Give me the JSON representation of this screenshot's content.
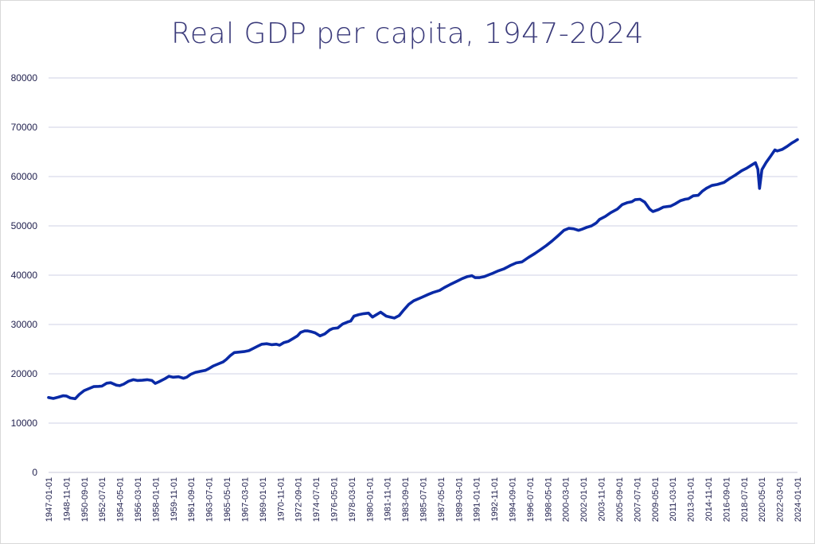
{
  "chart_data": {
    "type": "line",
    "title": "Real GDP per capita, 1947-2024",
    "xlabel": "",
    "ylabel": "",
    "ylim": [
      0,
      80000
    ],
    "yticks": [
      0,
      10000,
      20000,
      30000,
      40000,
      50000,
      60000,
      70000,
      80000
    ],
    "grid": true,
    "legend": "none",
    "colors": {
      "line": "#0a2aa6",
      "grid": "#cfd0e6",
      "text": "#1f1f4d",
      "title": "#3a3a7a"
    },
    "xticks": [
      "1947-01-01",
      "1948-11-01",
      "1950-09-01",
      "1952-07-01",
      "1954-05-01",
      "1956-03-01",
      "1958-01-01",
      "1959-11-01",
      "1961-09-01",
      "1963-07-01",
      "1965-05-01",
      "1967-03-01",
      "1969-01-01",
      "1970-11-01",
      "1972-09-01",
      "1974-07-01",
      "1976-05-01",
      "1978-03-01",
      "1980-01-01",
      "1981-11-01",
      "1983-09-01",
      "1985-07-01",
      "1987-05-01",
      "1989-03-01",
      "1991-01-01",
      "1992-11-01",
      "1994-09-01",
      "1996-07-01",
      "1998-05-01",
      "2000-03-01",
      "2002-01-01",
      "2003-11-01",
      "2005-09-01",
      "2007-07-01",
      "2009-05-01",
      "2011-03-01",
      "2013-01-01",
      "2014-11-01",
      "2016-09-01",
      "2018-07-01",
      "2020-05-01",
      "2022-03-01",
      "2024-01-01"
    ],
    "series": [
      {
        "points": [
          [
            "1947-01-01",
            15200
          ],
          [
            "1947-07-01",
            15000
          ],
          [
            "1948-01-01",
            15250
          ],
          [
            "1948-07-01",
            15550
          ],
          [
            "1948-11-01",
            15500
          ],
          [
            "1949-04-01",
            15100
          ],
          [
            "1949-10-01",
            14950
          ],
          [
            "1950-03-01",
            15800
          ],
          [
            "1950-09-01",
            16600
          ],
          [
            "1951-03-01",
            17000
          ],
          [
            "1951-09-01",
            17400
          ],
          [
            "1952-03-01",
            17450
          ],
          [
            "1952-07-01",
            17500
          ],
          [
            "1953-01-01",
            18100
          ],
          [
            "1953-06-01",
            18200
          ],
          [
            "1954-01-01",
            17700
          ],
          [
            "1954-05-01",
            17600
          ],
          [
            "1954-10-01",
            17900
          ],
          [
            "1955-04-01",
            18500
          ],
          [
            "1955-10-01",
            18800
          ],
          [
            "1956-03-01",
            18650
          ],
          [
            "1956-09-01",
            18700
          ],
          [
            "1957-03-01",
            18800
          ],
          [
            "1957-09-01",
            18650
          ],
          [
            "1958-01-01",
            18050
          ],
          [
            "1958-06-01",
            18400
          ],
          [
            "1959-01-01",
            19000
          ],
          [
            "1959-06-01",
            19500
          ],
          [
            "1959-11-01",
            19300
          ],
          [
            "1960-06-01",
            19400
          ],
          [
            "1960-12-01",
            19100
          ],
          [
            "1961-04-01",
            19300
          ],
          [
            "1961-09-01",
            19900
          ],
          [
            "1962-03-01",
            20300
          ],
          [
            "1962-09-01",
            20500
          ],
          [
            "1963-03-01",
            20700
          ],
          [
            "1963-07-01",
            21000
          ],
          [
            "1964-01-01",
            21600
          ],
          [
            "1964-07-01",
            22000
          ],
          [
            "1965-01-01",
            22400
          ],
          [
            "1965-05-01",
            22900
          ],
          [
            "1965-10-01",
            23700
          ],
          [
            "1966-03-01",
            24300
          ],
          [
            "1966-09-01",
            24400
          ],
          [
            "1967-03-01",
            24500
          ],
          [
            "1967-09-01",
            24700
          ],
          [
            "1968-03-01",
            25200
          ],
          [
            "1968-09-01",
            25700
          ],
          [
            "1969-01-01",
            26000
          ],
          [
            "1969-07-01",
            26100
          ],
          [
            "1970-01-01",
            25900
          ],
          [
            "1970-07-01",
            26000
          ],
          [
            "1970-11-01",
            25800
          ],
          [
            "1971-04-01",
            26300
          ],
          [
            "1971-10-01",
            26600
          ],
          [
            "1972-04-01",
            27200
          ],
          [
            "1972-09-01",
            27700
          ],
          [
            "1973-01-01",
            28400
          ],
          [
            "1973-06-01",
            28700
          ],
          [
            "1973-10-01",
            28700
          ],
          [
            "1974-03-01",
            28500
          ],
          [
            "1974-07-01",
            28300
          ],
          [
            "1975-01-01",
            27700
          ],
          [
            "1975-07-01",
            28100
          ],
          [
            "1976-01-01",
            28900
          ],
          [
            "1976-05-01",
            29200
          ],
          [
            "1976-11-01",
            29300
          ],
          [
            "1977-05-01",
            30100
          ],
          [
            "1977-11-01",
            30500
          ],
          [
            "1978-03-01",
            30700
          ],
          [
            "1978-07-01",
            31700
          ],
          [
            "1979-01-01",
            32000
          ],
          [
            "1979-07-01",
            32200
          ],
          [
            "1980-01-01",
            32300
          ],
          [
            "1980-06-01",
            31500
          ],
          [
            "1980-10-01",
            31900
          ],
          [
            "1981-04-01",
            32500
          ],
          [
            "1981-11-01",
            31700
          ],
          [
            "1982-04-01",
            31500
          ],
          [
            "1982-09-01",
            31300
          ],
          [
            "1983-03-01",
            31800
          ],
          [
            "1983-09-01",
            33000
          ],
          [
            "1984-03-01",
            34100
          ],
          [
            "1984-09-01",
            34800
          ],
          [
            "1985-07-01",
            35500
          ],
          [
            "1986-03-01",
            36100
          ],
          [
            "1986-09-01",
            36500
          ],
          [
            "1987-05-01",
            36900
          ],
          [
            "1987-11-01",
            37500
          ],
          [
            "1988-06-01",
            38100
          ],
          [
            "1989-03-01",
            38800
          ],
          [
            "1989-09-01",
            39300
          ],
          [
            "1990-03-01",
            39700
          ],
          [
            "1990-09-01",
            39900
          ],
          [
            "1991-01-01",
            39500
          ],
          [
            "1991-06-01",
            39500
          ],
          [
            "1991-12-01",
            39700
          ],
          [
            "1992-11-01",
            40400
          ],
          [
            "1993-06-01",
            40900
          ],
          [
            "1994-01-01",
            41300
          ],
          [
            "1994-09-01",
            42000
          ],
          [
            "1995-04-01",
            42500
          ],
          [
            "1995-11-01",
            42700
          ],
          [
            "1996-07-01",
            43600
          ],
          [
            "1997-03-01",
            44400
          ],
          [
            "1997-10-01",
            45200
          ],
          [
            "1998-05-01",
            46000
          ],
          [
            "1998-12-01",
            46900
          ],
          [
            "1999-07-01",
            47900
          ],
          [
            "2000-03-01",
            49100
          ],
          [
            "2000-09-01",
            49500
          ],
          [
            "2001-03-01",
            49400
          ],
          [
            "2001-09-01",
            49100
          ],
          [
            "2002-01-01",
            49300
          ],
          [
            "2002-07-01",
            49700
          ],
          [
            "2003-01-01",
            50000
          ],
          [
            "2003-07-01",
            50600
          ],
          [
            "2003-11-01",
            51300
          ],
          [
            "2004-06-01",
            51900
          ],
          [
            "2005-01-01",
            52700
          ],
          [
            "2005-09-01",
            53400
          ],
          [
            "2006-03-01",
            54300
          ],
          [
            "2006-09-01",
            54700
          ],
          [
            "2007-03-01",
            54900
          ],
          [
            "2007-07-01",
            55300
          ],
          [
            "2008-01-01",
            55400
          ],
          [
            "2008-07-01",
            54800
          ],
          [
            "2009-01-01",
            53400
          ],
          [
            "2009-05-01",
            52900
          ],
          [
            "2009-12-01",
            53300
          ],
          [
            "2010-06-01",
            53800
          ],
          [
            "2011-03-01",
            54000
          ],
          [
            "2011-09-01",
            54500
          ],
          [
            "2012-03-01",
            55100
          ],
          [
            "2012-09-01",
            55400
          ],
          [
            "2013-01-01",
            55500
          ],
          [
            "2013-07-01",
            56100
          ],
          [
            "2014-01-01",
            56200
          ],
          [
            "2014-06-01",
            57000
          ],
          [
            "2014-11-01",
            57600
          ],
          [
            "2015-06-01",
            58200
          ],
          [
            "2016-01-01",
            58400
          ],
          [
            "2016-09-01",
            58800
          ],
          [
            "2017-04-01",
            59600
          ],
          [
            "2017-11-01",
            60300
          ],
          [
            "2018-07-01",
            61200
          ],
          [
            "2019-01-01",
            61700
          ],
          [
            "2019-07-01",
            62300
          ],
          [
            "2019-12-01",
            62800
          ],
          [
            "2020-03-01",
            61500
          ],
          [
            "2020-05-01",
            57600
          ],
          [
            "2020-08-01",
            61400
          ],
          [
            "2021-01-01",
            62800
          ],
          [
            "2021-07-01",
            64200
          ],
          [
            "2021-12-01",
            65400
          ],
          [
            "2022-03-01",
            65200
          ],
          [
            "2022-09-01",
            65500
          ],
          [
            "2023-03-01",
            66100
          ],
          [
            "2023-09-01",
            66800
          ],
          [
            "2024-01-01",
            67200
          ],
          [
            "2024-04-01",
            67500
          ]
        ]
      }
    ]
  }
}
